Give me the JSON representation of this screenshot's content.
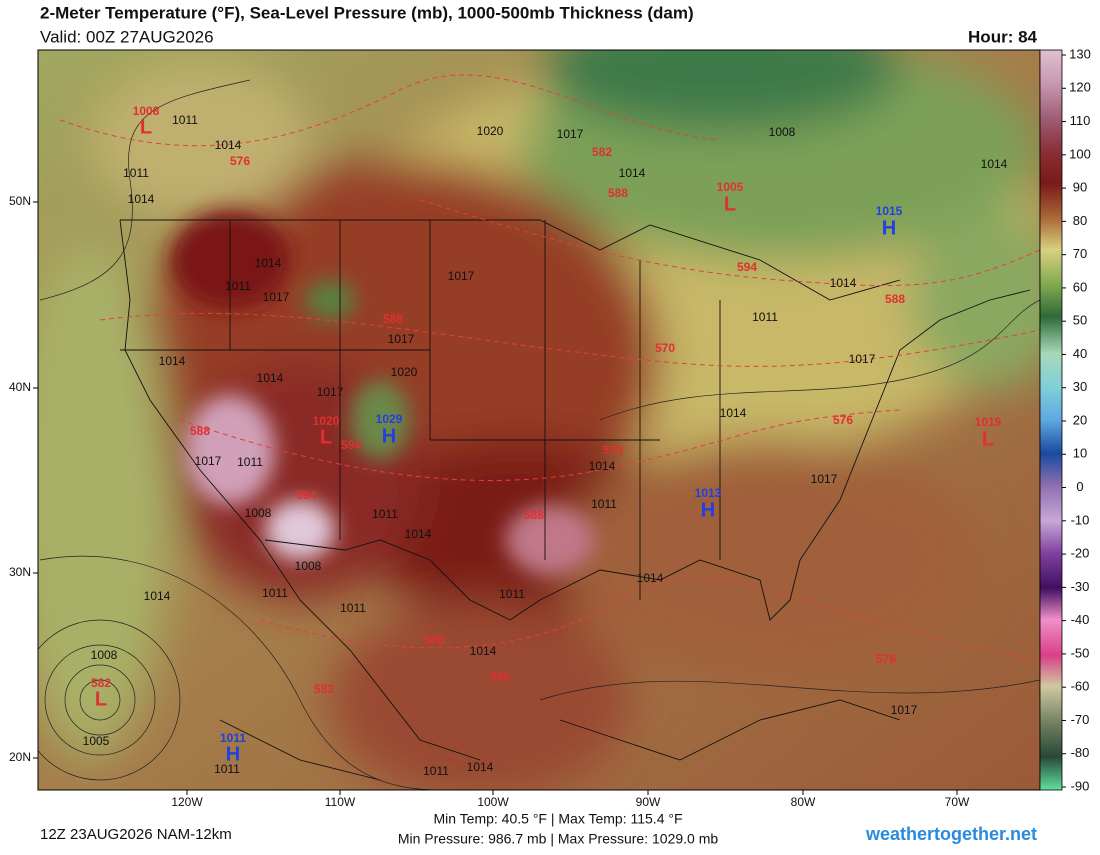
{
  "header": {
    "title": "2-Meter Temperature (°F), Sea-Level Pressure (mb), 1000-500mb Thickness (dam)",
    "valid": "Valid: 00Z 27AUG2026",
    "hour": "Hour: 84"
  },
  "map": {
    "lat_labels": [
      "50N",
      "40N",
      "30N",
      "20N"
    ],
    "lon_labels": [
      "120W",
      "110W",
      "100W",
      "90W",
      "80W",
      "70W"
    ],
    "labels": [
      "1008",
      "L",
      "1011",
      "1014",
      "576",
      "1011",
      "1014",
      "1020",
      "1017",
      "582",
      "1014",
      "588",
      "1008",
      "1005",
      "L",
      "1015",
      "H",
      "1014",
      "1014",
      "1011",
      "1017",
      "1017",
      "594",
      "1014",
      "588",
      "588",
      "1017",
      "1011",
      "570",
      "1017",
      "1014",
      "1014",
      "1020",
      "1017",
      "1014",
      "576",
      "1019",
      "L",
      "1020",
      "L",
      "1029",
      "H",
      "594",
      "576",
      "588",
      "1017",
      "1011",
      "1014",
      "1017",
      "594",
      "1013",
      "H",
      "1011",
      "1008",
      "1011",
      "588",
      "1014",
      "1008",
      "1014",
      "1011",
      "1014",
      "1011",
      "1011",
      "588",
      "1014",
      "576",
      "1008",
      "582",
      "L",
      "588",
      "582",
      "1005",
      "1011",
      "H",
      "1011",
      "1017",
      "1011",
      "1014"
    ]
  },
  "colorbar": {
    "ticks": [
      130,
      120,
      110,
      100,
      90,
      80,
      70,
      60,
      50,
      40,
      30,
      20,
      10,
      0,
      -10,
      -20,
      -30,
      -40,
      -50,
      -60,
      -70,
      -80,
      -90
    ]
  },
  "footer": {
    "run": "12Z 23AUG2026 NAM-12km",
    "temp_range": "Min Temp:  40.5 °F | Max Temp: 115.4 °F",
    "pressure_range": "Min Pressure: 986.7 mb | Max Pressure: 1029.0 mb",
    "site": "weathertogether.net"
  }
}
